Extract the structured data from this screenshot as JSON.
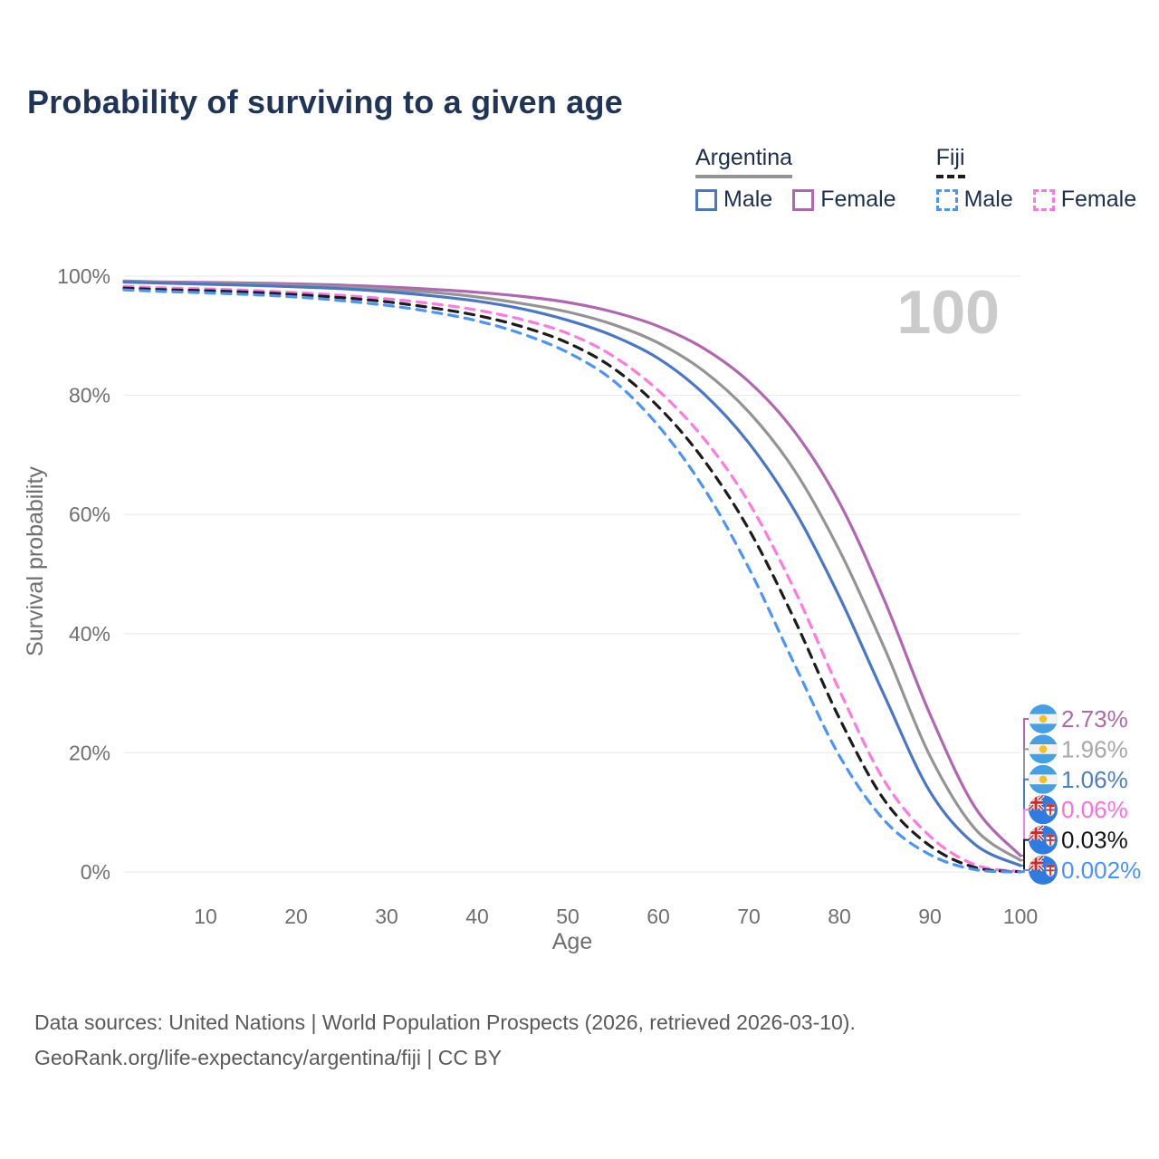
{
  "page": {
    "title": "Probability of surviving to a given age",
    "watermark_age": "100"
  },
  "legend": {
    "groups": [
      {
        "label": "Argentina",
        "line": {
          "color": "#949494",
          "style": "solid"
        },
        "items": [
          {
            "label": "Male",
            "color": "#4a77c4",
            "style": "solid"
          },
          {
            "label": "Female",
            "color": "#b066b0",
            "style": "solid"
          }
        ]
      },
      {
        "label": "Fiji",
        "line": {
          "color": "#1c1c1c",
          "style": "dashed"
        },
        "items": [
          {
            "label": "Male",
            "color": "#4b94f8",
            "style": "dashed"
          },
          {
            "label": "Female",
            "color": "#ff7ade",
            "style": "dashed"
          }
        ]
      }
    ]
  },
  "chart_data": {
    "type": "line",
    "title": "Probability of surviving to a given age",
    "xlabel": "Age",
    "ylabel": "Survival probability",
    "xlim": [
      1,
      100
    ],
    "ylim": [
      0,
      100
    ],
    "grid": "horizontal",
    "legend_position": "top-right",
    "x_ticks": [
      10,
      20,
      30,
      40,
      50,
      60,
      70,
      80,
      90,
      100
    ],
    "y_tick_values": [
      0,
      20,
      40,
      60,
      80,
      100
    ],
    "y_tick_labels": [
      "0%",
      "20%",
      "40%",
      "60%",
      "80%",
      "100%"
    ],
    "x": [
      1,
      5,
      10,
      15,
      20,
      25,
      30,
      35,
      40,
      45,
      50,
      55,
      60,
      65,
      70,
      75,
      80,
      85,
      90,
      95,
      100
    ],
    "series": [
      {
        "name": "Argentina Female",
        "country": "Argentina",
        "sex": "Female",
        "color": "#b066b0",
        "dash": "solid",
        "flag": "argentina",
        "end_label": "2.73%",
        "end_label_color": "#a96ba9",
        "values": [
          99.2,
          99.05,
          98.95,
          98.85,
          98.7,
          98.5,
          98.2,
          97.8,
          97.3,
          96.6,
          95.6,
          94.0,
          91.6,
          87.9,
          82.3,
          74.0,
          62.0,
          45.5,
          26.5,
          10.8,
          2.73
        ]
      },
      {
        "name": "Argentina",
        "country": "Argentina",
        "sex": "Both",
        "color": "#949494",
        "dash": "solid",
        "flag": "argentina",
        "end_label": "1.96%",
        "end_label_color": "#a8a8a8",
        "values": [
          99.1,
          98.95,
          98.8,
          98.65,
          98.45,
          98.2,
          97.8,
          97.3,
          96.5,
          95.4,
          94.0,
          91.9,
          88.8,
          84.1,
          77.2,
          67.5,
          54.0,
          37.5,
          19.5,
          7.2,
          1.96
        ]
      },
      {
        "name": "Argentina Male",
        "country": "Argentina",
        "sex": "Male",
        "color": "#4a77c4",
        "dash": "solid",
        "flag": "argentina",
        "end_label": "1.06%",
        "end_label_color": "#4d7ec0",
        "values": [
          99.0,
          98.85,
          98.65,
          98.45,
          98.2,
          97.9,
          97.4,
          96.7,
          95.8,
          94.5,
          92.6,
          90.0,
          86.2,
          80.3,
          72.0,
          60.8,
          46.2,
          29.5,
          13.5,
          4.6,
          1.06
        ]
      },
      {
        "name": "Fiji Female",
        "country": "Fiji",
        "sex": "Female",
        "color": "#ff7ade",
        "dash": "dashed",
        "flag": "fiji",
        "end_label": "0.06%",
        "end_label_color": "#ff6ede",
        "values": [
          98.3,
          98.05,
          97.85,
          97.6,
          97.25,
          96.8,
          96.2,
          95.4,
          94.3,
          92.7,
          90.4,
          86.6,
          80.8,
          72.8,
          62.0,
          47.5,
          30.5,
          15.2,
          6.0,
          1.2,
          0.06
        ]
      },
      {
        "name": "Fiji",
        "country": "Fiji",
        "sex": "Both",
        "color": "#1c1c1c",
        "dash": "dashed",
        "flag": "fiji",
        "end_label": "0.03%",
        "end_label_color": "#141414",
        "values": [
          98.0,
          97.75,
          97.55,
          97.3,
          96.9,
          96.4,
          95.7,
          94.7,
          93.4,
          91.5,
          88.8,
          84.6,
          78.1,
          69.2,
          57.5,
          42.5,
          25.8,
          12.0,
          4.4,
          0.75,
          0.03
        ]
      },
      {
        "name": "Fiji Male",
        "country": "Fiji",
        "sex": "Male",
        "color": "#4b94f8",
        "dash": "dashed",
        "flag": "fiji",
        "end_label": "0.002%",
        "end_label_color": "#4b90ff",
        "values": [
          97.7,
          97.45,
          97.2,
          96.9,
          96.5,
          95.9,
          95.1,
          94.0,
          92.5,
          90.3,
          87.2,
          82.5,
          74.9,
          64.5,
          51.0,
          35.0,
          19.5,
          8.6,
          2.9,
          0.4,
          0.002
        ]
      }
    ]
  },
  "footer": {
    "line1": "Data sources: United Nations | World Population Prospects (2026, retrieved 2026-03-10).",
    "line2": "GeoRank.org/life-expectancy/argentina/fiji | CC BY"
  }
}
